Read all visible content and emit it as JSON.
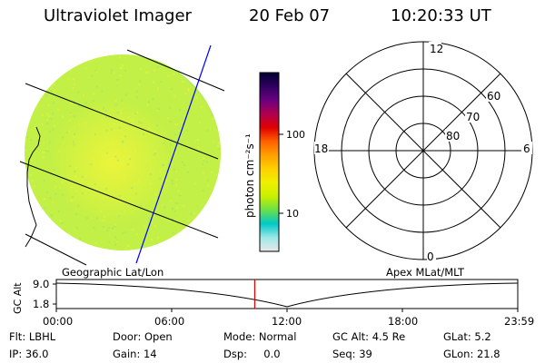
{
  "header": {
    "instrument": "Ultraviolet Imager",
    "date": "20 Feb 07",
    "time": "10:20:33 UT"
  },
  "colorbar": {
    "label": "photon cm⁻²s⁻¹",
    "ticks": [
      "100",
      "10"
    ],
    "stops": [
      "#e8e8e8",
      "#9ee8e8",
      "#00c8c8",
      "#6ae04a",
      "#c8f000",
      "#f0f000",
      "#ffd000",
      "#ffa000",
      "#ff6000",
      "#e00000",
      "#b00050",
      "#6a0080",
      "#300060",
      "#000030"
    ]
  },
  "polar_plot": {
    "mlt_labels": {
      "top": "12",
      "right": "6",
      "bottom": "0",
      "left": "18"
    },
    "lat_labels": [
      "60",
      "70",
      "80"
    ]
  },
  "image_panel": {
    "colors": {
      "base": "#c2f046",
      "center": "#ecf43a",
      "rim": "#7ad8b0",
      "speckle": "#9fe070"
    }
  },
  "timeline": {
    "left_label": "Geographic Lat/Lon",
    "right_label": "Apex MLat/MLT",
    "axis_label": "GC Alt",
    "y_ticks": [
      "9.0",
      "1.8"
    ],
    "x_ticks": [
      "00:00",
      "06:00",
      "12:00",
      "18:00",
      "23:59"
    ],
    "marker_time_fraction": 0.43,
    "marker_color": "#e00000"
  },
  "status": {
    "flt": "Flt: LBHL",
    "door": "Door: Open",
    "mode": "Mode: Normal",
    "gc_alt": "GC Alt: 4.5 Re",
    "glat": "GLat:  5.2",
    "ip": "IP: 36.0",
    "gain": "Gain: 14",
    "dsp": "Dsp:     0.0",
    "seq": "Seq: 39",
    "glon": "GLon:  21.8"
  }
}
